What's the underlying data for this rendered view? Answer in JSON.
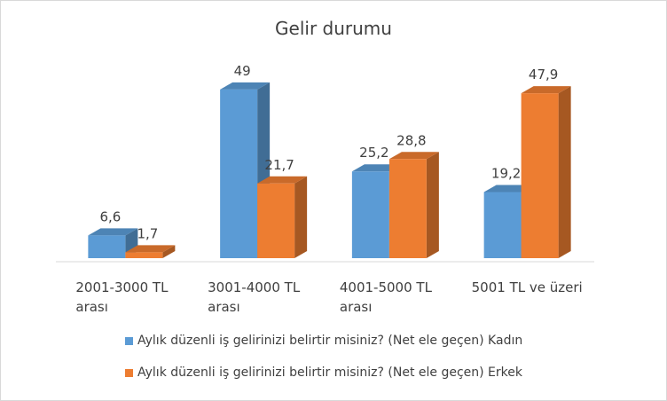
{
  "chart_data": {
    "type": "bar3d",
    "title": "Gelir durumu",
    "categories": [
      "2001-3000 TL arası",
      "3001-4000 TL arası",
      "4001-5000 TL arası",
      "5001 TL ve üzeri"
    ],
    "series": [
      {
        "name": "Aylık düzenli iş gelirinizi belirtir misiniz? (Net ele geçen) Kadın",
        "color": "#5b9bd5",
        "values": [
          6.6,
          49,
          25.2,
          19.2
        ],
        "value_labels": [
          "6,6",
          "49",
          "25,2",
          "19,2"
        ]
      },
      {
        "name": "Aylık düzenli iş gelirinizi belirtir misiniz? (Net ele geçen) Erkek",
        "color": "#ed7d31",
        "values": [
          1.7,
          21.7,
          28.8,
          47.9
        ],
        "value_labels": [
          "1,7",
          "21,7",
          "28,8",
          "47,9"
        ]
      }
    ],
    "ylim": [
      0,
      50
    ]
  }
}
